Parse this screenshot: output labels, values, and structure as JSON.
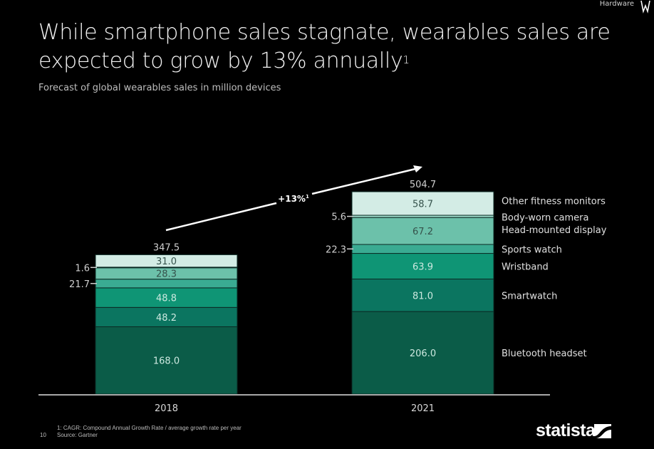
{
  "header": {
    "topic": "Hardware",
    "title": "While smartphone sales stagnate, wearables sales are expected to grow by 13% annually",
    "title_superscript": "1",
    "subtitle": "Forecast of global wearables sales in million devices"
  },
  "annotation": {
    "cagr_label": "+13%",
    "cagr_superscript": "1"
  },
  "footer": {
    "page_number": "10",
    "footnote": "1: CAGR: Compound Annual Growth Rate / average growth rate per year",
    "source": "Source: Gartner",
    "brand": "statista"
  },
  "colors": {
    "background": "#000000",
    "Bluetooth headset": "#0b5c48",
    "Smartwatch": "#0b7560",
    "Wristband": "#0f9575",
    "Sports watch": "#3aab92",
    "Head-mounted display": "#6cc1aa",
    "Body-worn camera": "#9bd6c6",
    "Other fitness monitors": "#d3ece5"
  },
  "chart_data": {
    "type": "bar",
    "stacked": true,
    "title": "Forecast of global wearables sales in million devices",
    "xlabel": "",
    "ylabel": "",
    "categories": [
      "2018",
      "2021"
    ],
    "totals": [
      347.5,
      504.7
    ],
    "series": [
      {
        "name": "Bluetooth headset",
        "values": [
          168.0,
          206.0
        ]
      },
      {
        "name": "Smartwatch",
        "values": [
          48.2,
          81.0
        ]
      },
      {
        "name": "Wristband",
        "values": [
          48.8,
          63.9
        ]
      },
      {
        "name": "Sports watch",
        "values": [
          21.7,
          22.3
        ]
      },
      {
        "name": "Head-mounted display",
        "values": [
          28.3,
          67.2
        ]
      },
      {
        "name": "Body-worn camera",
        "values": [
          1.6,
          5.6
        ]
      },
      {
        "name": "Other fitness monitors",
        "values": [
          31.0,
          58.7
        ]
      }
    ],
    "value_label_display": {
      "inside": [
        "Bluetooth headset",
        "Smartwatch",
        "Wristband",
        "Head-mounted display",
        "Other fitness monitors"
      ],
      "outside_left": [
        "Sports watch",
        "Body-worn camera"
      ]
    },
    "legend": "right, aligned with 2021 bar segments",
    "annotations": [
      "+13%1 CAGR arrow from 2018 to 2021"
    ],
    "grid": false,
    "ylim": [
      0,
      504.7
    ]
  }
}
